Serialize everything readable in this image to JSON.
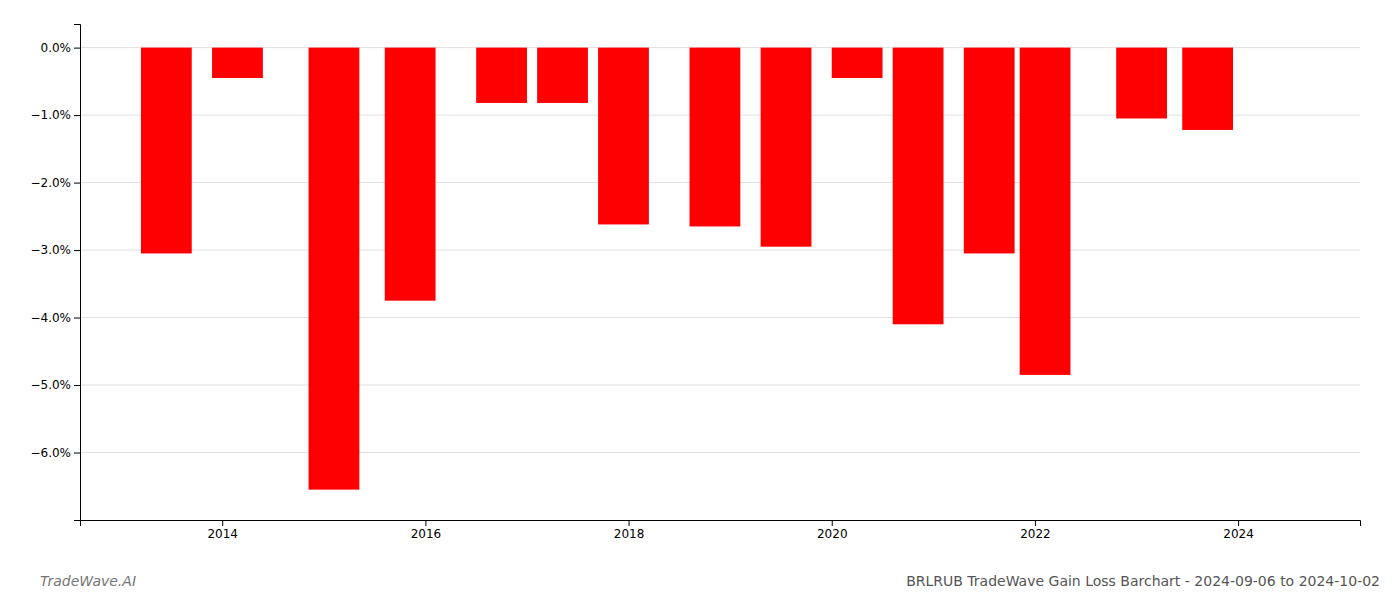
{
  "chart_data": {
    "type": "bar",
    "title": "BRLRUB TradeWave Gain Loss Barchart - 2024-09-06 to 2024-10-02",
    "annotations": [
      "TradeWave.AI"
    ],
    "x": [
      2013.45,
      2014.15,
      2015.1,
      2015.85,
      2016.75,
      2017.35,
      2017.95,
      2018.85,
      2019.55,
      2020.25,
      2020.85,
      2021.55,
      2022.1,
      2023.05,
      2023.7
    ],
    "values": [
      -3.05,
      -0.45,
      -6.55,
      -3.75,
      -0.82,
      -0.82,
      -2.62,
      -2.65,
      -2.95,
      -0.45,
      -4.1,
      -3.05,
      -4.85,
      -1.05,
      -1.22
    ],
    "color": "#ff0000",
    "xlim": [
      2012.6,
      2025.2
    ],
    "xticks": [
      2014,
      2016,
      2018,
      2020,
      2022,
      2024
    ],
    "ylim": [
      -7.0,
      0.35
    ],
    "yticks": [
      {
        "value": 0.0,
        "label": "0.0%"
      },
      {
        "value": -1.0,
        "label": "−1.0%"
      },
      {
        "value": -2.0,
        "label": "−2.0%"
      },
      {
        "value": -3.0,
        "label": "−3.0%"
      },
      {
        "value": -4.0,
        "label": "−4.0%"
      },
      {
        "value": -5.0,
        "label": "−5.0%"
      },
      {
        "value": -6.0,
        "label": "−6.0%"
      }
    ],
    "grid": true
  }
}
